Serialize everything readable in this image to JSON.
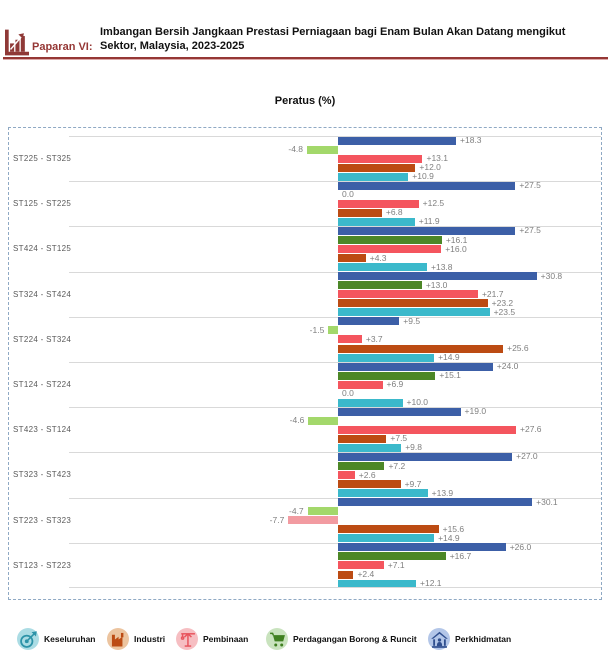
{
  "header": {
    "figure_label": "Paparan VI:",
    "title_line1": "Imbangan Bersih Jangkaan Prestasi Perniagaan bagi Enam Bulan Akan Datang mengikut",
    "title_line2": "Sektor, Malaysia, 2023-2025",
    "accent_color": "#953735"
  },
  "chart_data": {
    "type": "bar",
    "orientation": "horizontal",
    "title": "Peratus (%)",
    "unit": "%",
    "value_prefix_positive": "+",
    "grid": true,
    "legend_position": "bottom",
    "xlim": [
      -51,
      41
    ],
    "bar_order_note": "series listed in top-to-bottom bar order within each category group",
    "categories": [
      "ST225 - ST325",
      "ST125 - ST225",
      "ST424 - ST125",
      "ST324 - ST424",
      "ST224 - ST324",
      "ST124 - ST224",
      "ST423 - ST124",
      "ST323 - ST423",
      "ST223 - ST323",
      "ST123 - ST223"
    ],
    "series": [
      {
        "name": "Perkhidmatan",
        "color": "#3C5FA7",
        "negative_color": "#3C5FA7",
        "values": [
          18.3,
          27.5,
          27.5,
          30.8,
          9.5,
          24.0,
          19.0,
          27.0,
          30.1,
          26.0
        ]
      },
      {
        "name": "Perdagangan Borong & Runcit",
        "color": "#4C8727",
        "negative_color": "#A3D86B",
        "values": [
          -4.8,
          0.0,
          16.1,
          13.0,
          -1.5,
          15.1,
          -4.6,
          7.2,
          -4.7,
          16.7
        ]
      },
      {
        "name": "Pembinaan",
        "color": "#F4555E",
        "negative_color": "#F29BA1",
        "values": [
          13.1,
          12.5,
          16.0,
          21.7,
          3.7,
          6.9,
          27.6,
          2.6,
          -7.7,
          7.1
        ]
      },
      {
        "name": "Industri",
        "color": "#BC4B13",
        "negative_color": "#BC4B13",
        "values": [
          12.0,
          6.8,
          4.3,
          23.2,
          25.6,
          0.0,
          7.5,
          9.7,
          15.6,
          2.4
        ]
      },
      {
        "name": "Keseluruhan",
        "color": "#3BB9CB",
        "negative_color": "#3BB9CB",
        "values": [
          10.9,
          11.9,
          13.8,
          23.5,
          14.9,
          10.0,
          9.8,
          13.9,
          14.9,
          12.1
        ]
      }
    ],
    "colors": {
      "grid": "#D9D9D9",
      "plot_border": "#8FA9C4",
      "value_label": "#7F7F7F",
      "category_label": "#595959"
    }
  },
  "legend": {
    "items": [
      {
        "label": "Keseluruhan",
        "icon": "target-icon",
        "circle_color": "#ABDCE4",
        "icon_color": "#2D93A8"
      },
      {
        "label": "Industri",
        "icon": "factory-icon",
        "circle_color": "#ECC49F",
        "icon_color": "#BC4B13"
      },
      {
        "label": "Pembinaan",
        "icon": "crane-icon",
        "circle_color": "#F6BEC2",
        "icon_color": "#E8555E"
      },
      {
        "label": "Perdagangan Borong & Runcit",
        "icon": "cart-icon",
        "circle_color": "#C9E3BE",
        "icon_color": "#3F8020"
      },
      {
        "label": "Perkhidmatan",
        "icon": "building-icon",
        "circle_color": "#B3C6E8",
        "icon_color": "#2F4E8E"
      }
    ]
  }
}
